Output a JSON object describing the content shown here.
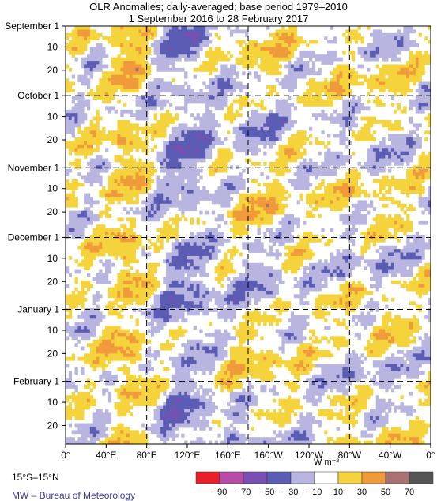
{
  "header": {
    "title": "OLR Anomalies; daily-averaged; base period 1979–2010",
    "subtitle": "1 September 2016 to 28 February 2017"
  },
  "footer": {
    "region": "15°S–15°N",
    "credit": "MW – Bureau of Meteorology"
  },
  "chart_data": {
    "type": "heatmap",
    "title": "OLR Anomalies; daily-averaged; base period 1979–2010",
    "subtitle": "1 September 2016 to 28 February 2017",
    "x_ticks": [
      "0°",
      "40°E",
      "80°E",
      "120°E",
      "160°E",
      "160°W",
      "120°W",
      "80°W",
      "40°W",
      "0°"
    ],
    "x_range_deg_east": [
      0,
      360
    ],
    "y_month_labels": [
      "September 1",
      "October 1",
      "November 1",
      "December 1",
      "January 1",
      "February 1"
    ],
    "y_minor_labels": [
      "10",
      "20"
    ],
    "y_range_days": [
      0,
      180
    ],
    "month_start_days": [
      0,
      30,
      61,
      91,
      122,
      153
    ],
    "grid_lines": {
      "x_deg_east": [
        80,
        180,
        280
      ],
      "y_month_starts": [
        "October 1",
        "November 1",
        "December 1",
        "January 1",
        "February 1"
      ]
    },
    "colorbar": {
      "unit": "W m⁻²",
      "tick_labels": [
        "−90",
        "−70",
        "−50",
        "−30",
        "−10",
        "10",
        "30",
        "50",
        "70"
      ],
      "colors": [
        "#e8202a",
        "#b84aa8",
        "#7b4fb0",
        "#5b5cb4",
        "#b8b6e0",
        "#ffffff",
        "#f5d33c",
        "#f19a3c",
        "#a87272",
        "#555555"
      ]
    },
    "features": [
      {
        "description": "Persistent positive anomaly band near 50°–70°E",
        "sign": "positive"
      },
      {
        "description": "Negative anomaly region 90°–150°E (Maritime Continent)",
        "sign": "negative"
      },
      {
        "description": "Positive anomalies near 160°E–160°W",
        "sign": "positive"
      }
    ]
  }
}
